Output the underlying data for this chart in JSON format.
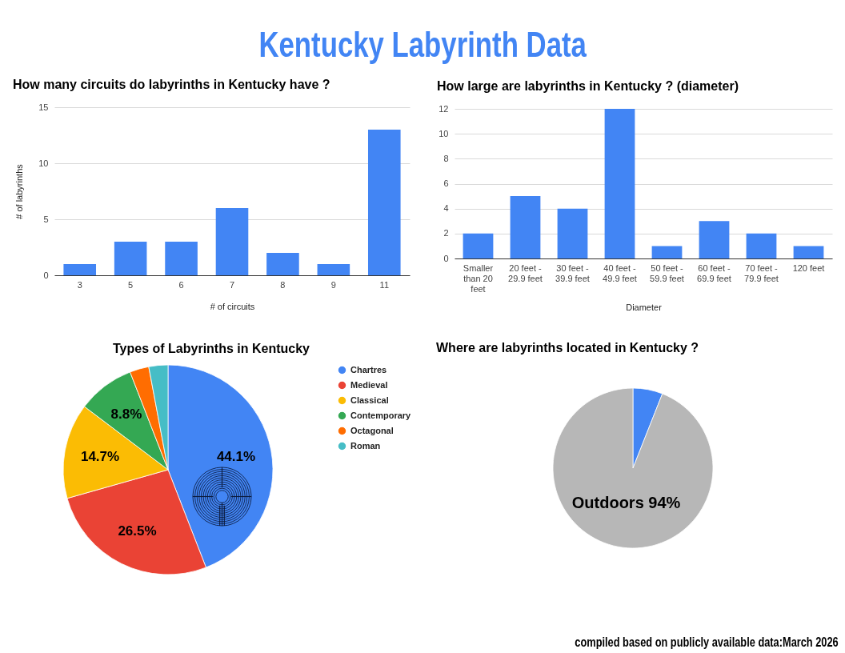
{
  "chart_data": [
    {
      "type": "other",
      "title": "Kentucky Labyrinth Data"
    },
    {
      "type": "bar",
      "title": "How many circuits do labyrinths in Kentucky have ?",
      "categories": [
        "3",
        "5",
        "6",
        "7",
        "8",
        "9",
        "11"
      ],
      "values": [
        1,
        3,
        3,
        6,
        2,
        1,
        13
      ],
      "color": "#4285f4",
      "xlabel": "# of circuits",
      "ylabel": "# of labyrinths",
      "ylim": [
        0,
        15
      ],
      "yticks": [
        0,
        5,
        10,
        15
      ],
      "grid": "y"
    },
    {
      "type": "bar",
      "title": "How large are labyrinths in Kentucky ? (diameter)",
      "categories": [
        "Smaller than 20 feet",
        "20 feet - 29.9 feet",
        "30 feet - 39.9 feet",
        "40 feet - 49.9 feet",
        "50 feet - 59.9 feet",
        "60 feet - 69.9 feet",
        "70 feet - 79.9 feet",
        "120 feet"
      ],
      "values": [
        2,
        5,
        4,
        12,
        1,
        3,
        2,
        1
      ],
      "color": "#4285f4",
      "xlabel": "Diameter",
      "ylim": [
        0,
        12
      ],
      "yticks": [
        0,
        2,
        4,
        6,
        8,
        10,
        12
      ],
      "grid": "y"
    },
    {
      "type": "pie",
      "title": "Types of Labyrinths in Kentucky",
      "categories": [
        "Chartres",
        "Medieval",
        "Classical",
        "Contemporary",
        "Octagonal",
        "Roman"
      ],
      "values": [
        44.1,
        26.5,
        14.7,
        8.8,
        2.95,
        2.95
      ],
      "colors": [
        "#4285f4",
        "#ea4335",
        "#fbbc04",
        "#34a853",
        "#ff6d01",
        "#46bdc6"
      ],
      "value_labels": [
        "44.1%",
        "26.5%",
        "14.7%",
        "8.8%",
        null,
        null
      ],
      "legend": "right"
    },
    {
      "type": "pie",
      "title": "Where are labyrinths located in Kentucky ?",
      "categories": [
        null,
        "Outdoors"
      ],
      "values": [
        6,
        94
      ],
      "colors": [
        "#4285f4",
        "#b7b7b7"
      ],
      "value_labels": [
        null,
        "94%"
      ]
    },
    {
      "type": "other",
      "annotations": [
        "compiled based on publicly available data:March 2026"
      ]
    }
  ]
}
